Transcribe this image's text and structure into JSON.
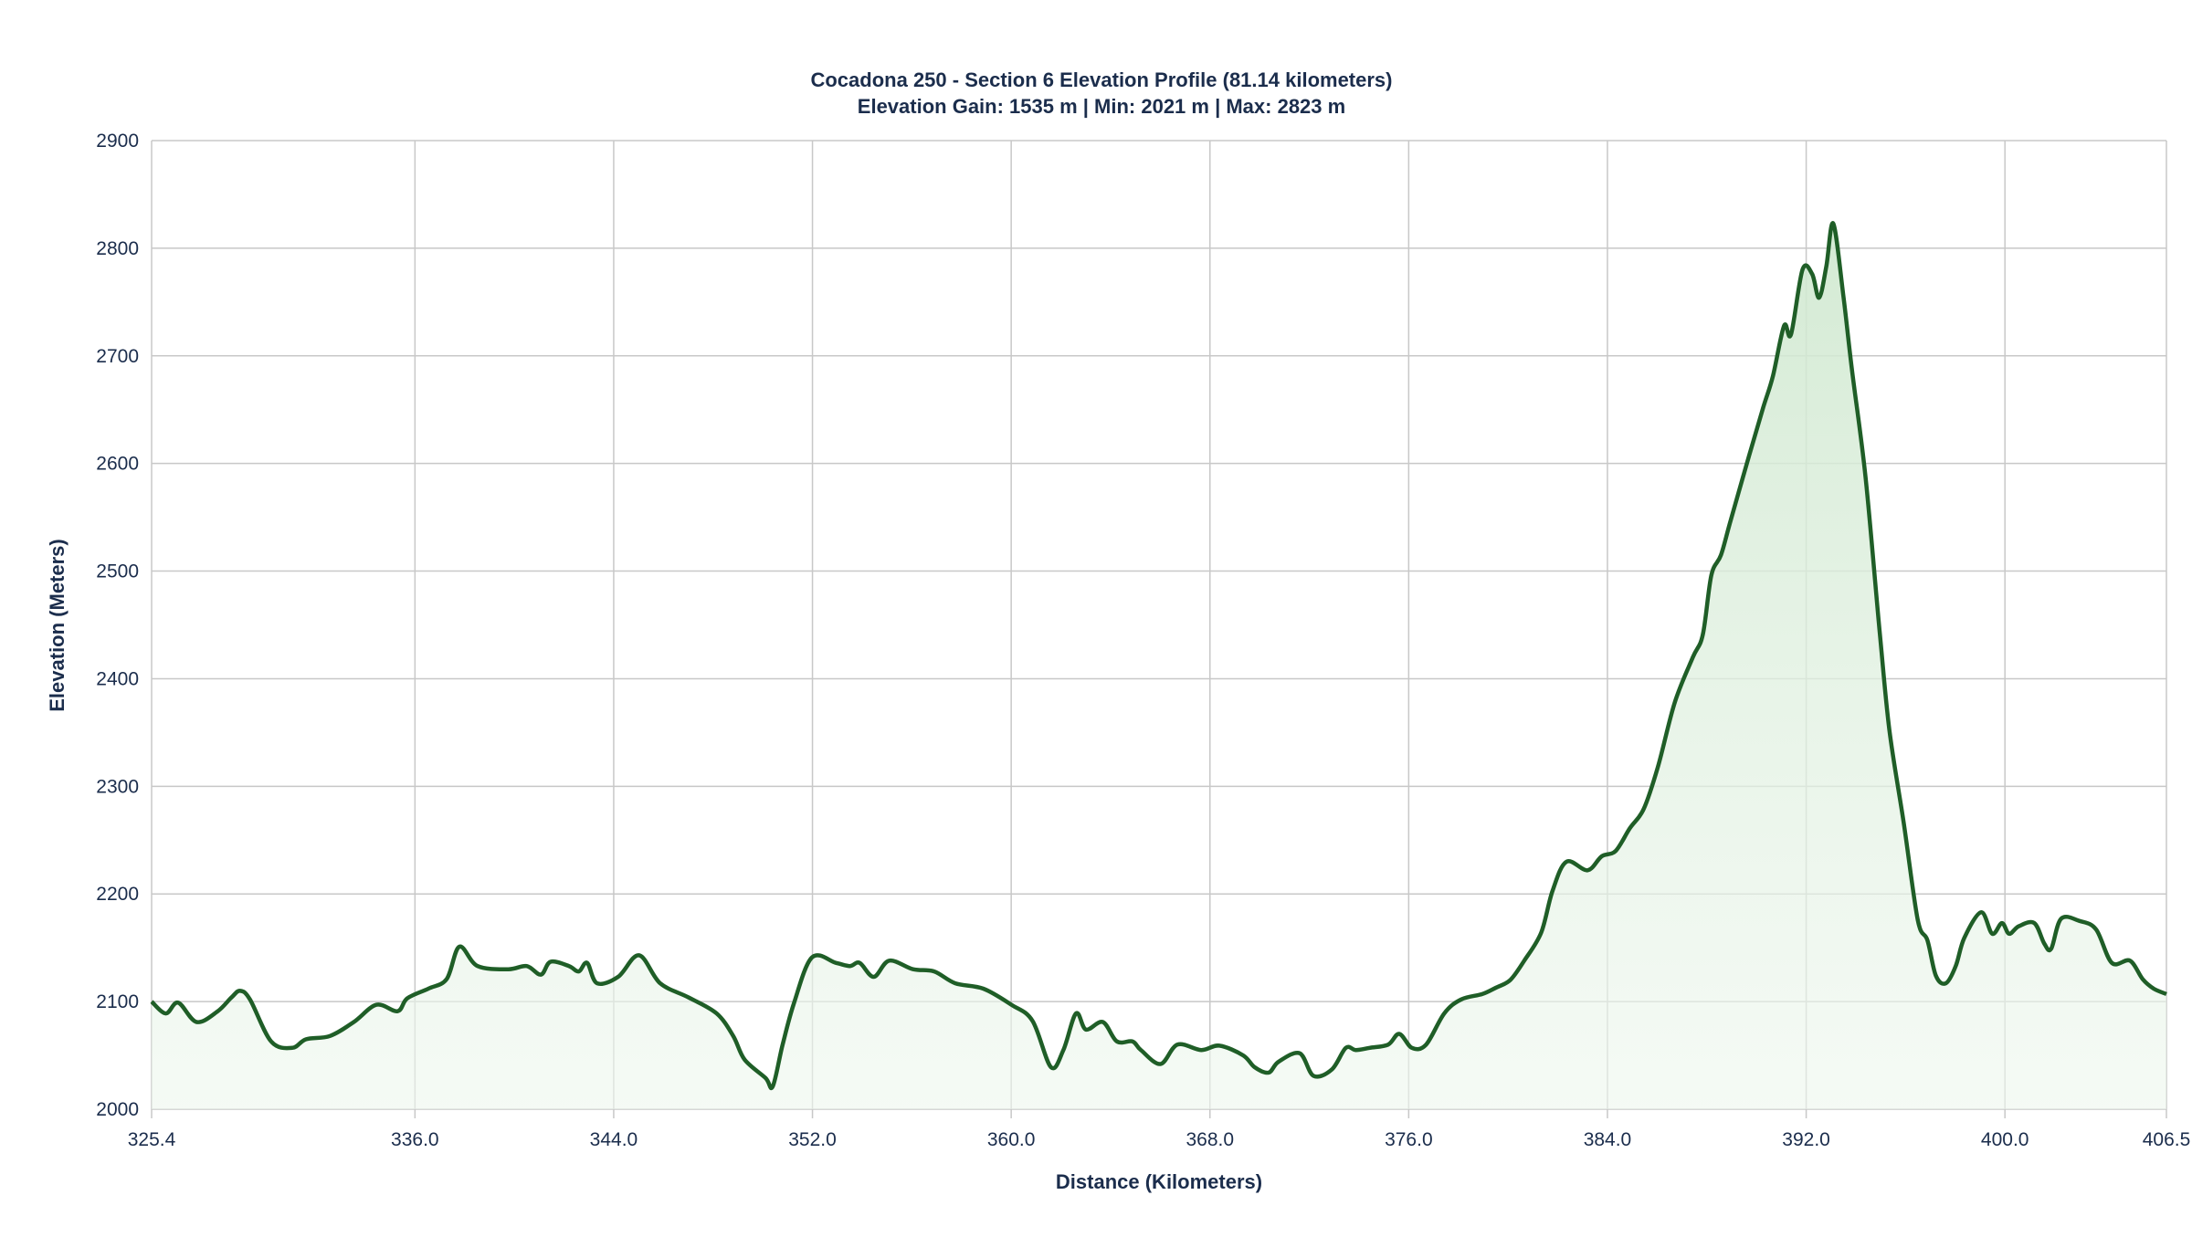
{
  "chart_data": {
    "type": "area",
    "title": "Cocadona 250 - Section 6 Elevation Profile (81.14 kilometers)",
    "subtitle": "Elevation Gain: 1535 m | Min: 2021 m | Max: 2823 m",
    "xlabel": "Distance (Kilometers)",
    "ylabel": "Elevation (Meters)",
    "xlim": [
      325.4,
      406.5
    ],
    "ylim": [
      2000,
      2900
    ],
    "x_ticks": [
      "325.4",
      "336.0",
      "344.0",
      "352.0",
      "360.0",
      "368.0",
      "376.0",
      "384.0",
      "392.0",
      "400.0",
      "406.5"
    ],
    "y_ticks": [
      "2000",
      "2100",
      "2200",
      "2300",
      "2400",
      "2500",
      "2600",
      "2700",
      "2800",
      "2900"
    ],
    "grid": true,
    "line_color": "#1f5e27",
    "fill_color": "#d4ebd4",
    "x": [
      325.4,
      325.97,
      326.47,
      327.21,
      328.06,
      328.62,
      328.96,
      329.36,
      330.21,
      331.06,
      331.62,
      332.58,
      333.54,
      334.45,
      335.3,
      335.69,
      336.54,
      337.28,
      337.79,
      338.52,
      339.76,
      340.5,
      341.07,
      341.46,
      342.2,
      342.59,
      342.93,
      343.33,
      344.18,
      345.02,
      345.87,
      347.0,
      348.14,
      348.81,
      349.27,
      350.11,
      350.4,
      350.79,
      351.25,
      351.98,
      352.94,
      353.51,
      353.9,
      354.47,
      355.09,
      356.05,
      356.9,
      357.75,
      358.88,
      360.01,
      360.86,
      361.6,
      362.1,
      362.61,
      363.01,
      363.69,
      364.25,
      364.88,
      365.22,
      366.01,
      366.69,
      367.65,
      368.38,
      369.34,
      369.8,
      370.36,
      370.76,
      371.61,
      372.17,
      372.91,
      373.47,
      373.87,
      374.43,
      375.17,
      375.62,
      376.13,
      376.7,
      377.43,
      378.11,
      378.96,
      379.52,
      380.09,
      380.65,
      381.33,
      381.79,
      382.35,
      383.2,
      383.77,
      384.33,
      384.9,
      385.46,
      386.03,
      386.71,
      387.44,
      387.84,
      388.18,
      388.57,
      388.97,
      389.7,
      390.27,
      390.66,
      391.11,
      391.39,
      391.85,
      392.24,
      392.52,
      392.81,
      393.09,
      393.49,
      393.83,
      394.39,
      394.96,
      395.35,
      395.92,
      396.49,
      396.88,
      397.22,
      397.62,
      398.02,
      398.36,
      399.04,
      399.49,
      399.88,
      400.17,
      400.56,
      401.18,
      401.58,
      401.86,
      402.26,
      402.99,
      403.67,
      404.3,
      405.03,
      405.54,
      405.99,
      406.5
    ],
    "y": [
      2100,
      2089,
      2099,
      2081,
      2091,
      2104,
      2110,
      2102,
      2063,
      2057,
      2065,
      2068,
      2081,
      2097,
      2091,
      2103,
      2112,
      2121,
      2151,
      2133,
      2130,
      2133,
      2125,
      2137,
      2133,
      2128,
      2136,
      2117,
      2123,
      2143,
      2117,
      2104,
      2089,
      2068,
      2046,
      2029,
      2021,
      2059,
      2098,
      2141,
      2136,
      2133,
      2136,
      2123,
      2138,
      2130,
      2128,
      2117,
      2112,
      2097,
      2082,
      2039,
      2055,
      2089,
      2074,
      2081,
      2063,
      2063,
      2055,
      2042,
      2060,
      2055,
      2059,
      2050,
      2039,
      2034,
      2044,
      2052,
      2031,
      2037,
      2057,
      2055,
      2057,
      2060,
      2070,
      2057,
      2060,
      2089,
      2102,
      2107,
      2113,
      2120,
      2138,
      2164,
      2203,
      2230,
      2222,
      2235,
      2240,
      2261,
      2279,
      2318,
      2378,
      2420,
      2441,
      2496,
      2515,
      2548,
      2607,
      2652,
      2681,
      2728,
      2720,
      2780,
      2776,
      2754,
      2783,
      2823,
      2757,
      2689,
      2587,
      2443,
      2352,
      2267,
      2176,
      2157,
      2124,
      2117,
      2133,
      2159,
      2183,
      2163,
      2173,
      2163,
      2170,
      2173,
      2154,
      2149,
      2177,
      2175,
      2167,
      2136,
      2138,
      2121,
      2112,
      2107
    ]
  }
}
